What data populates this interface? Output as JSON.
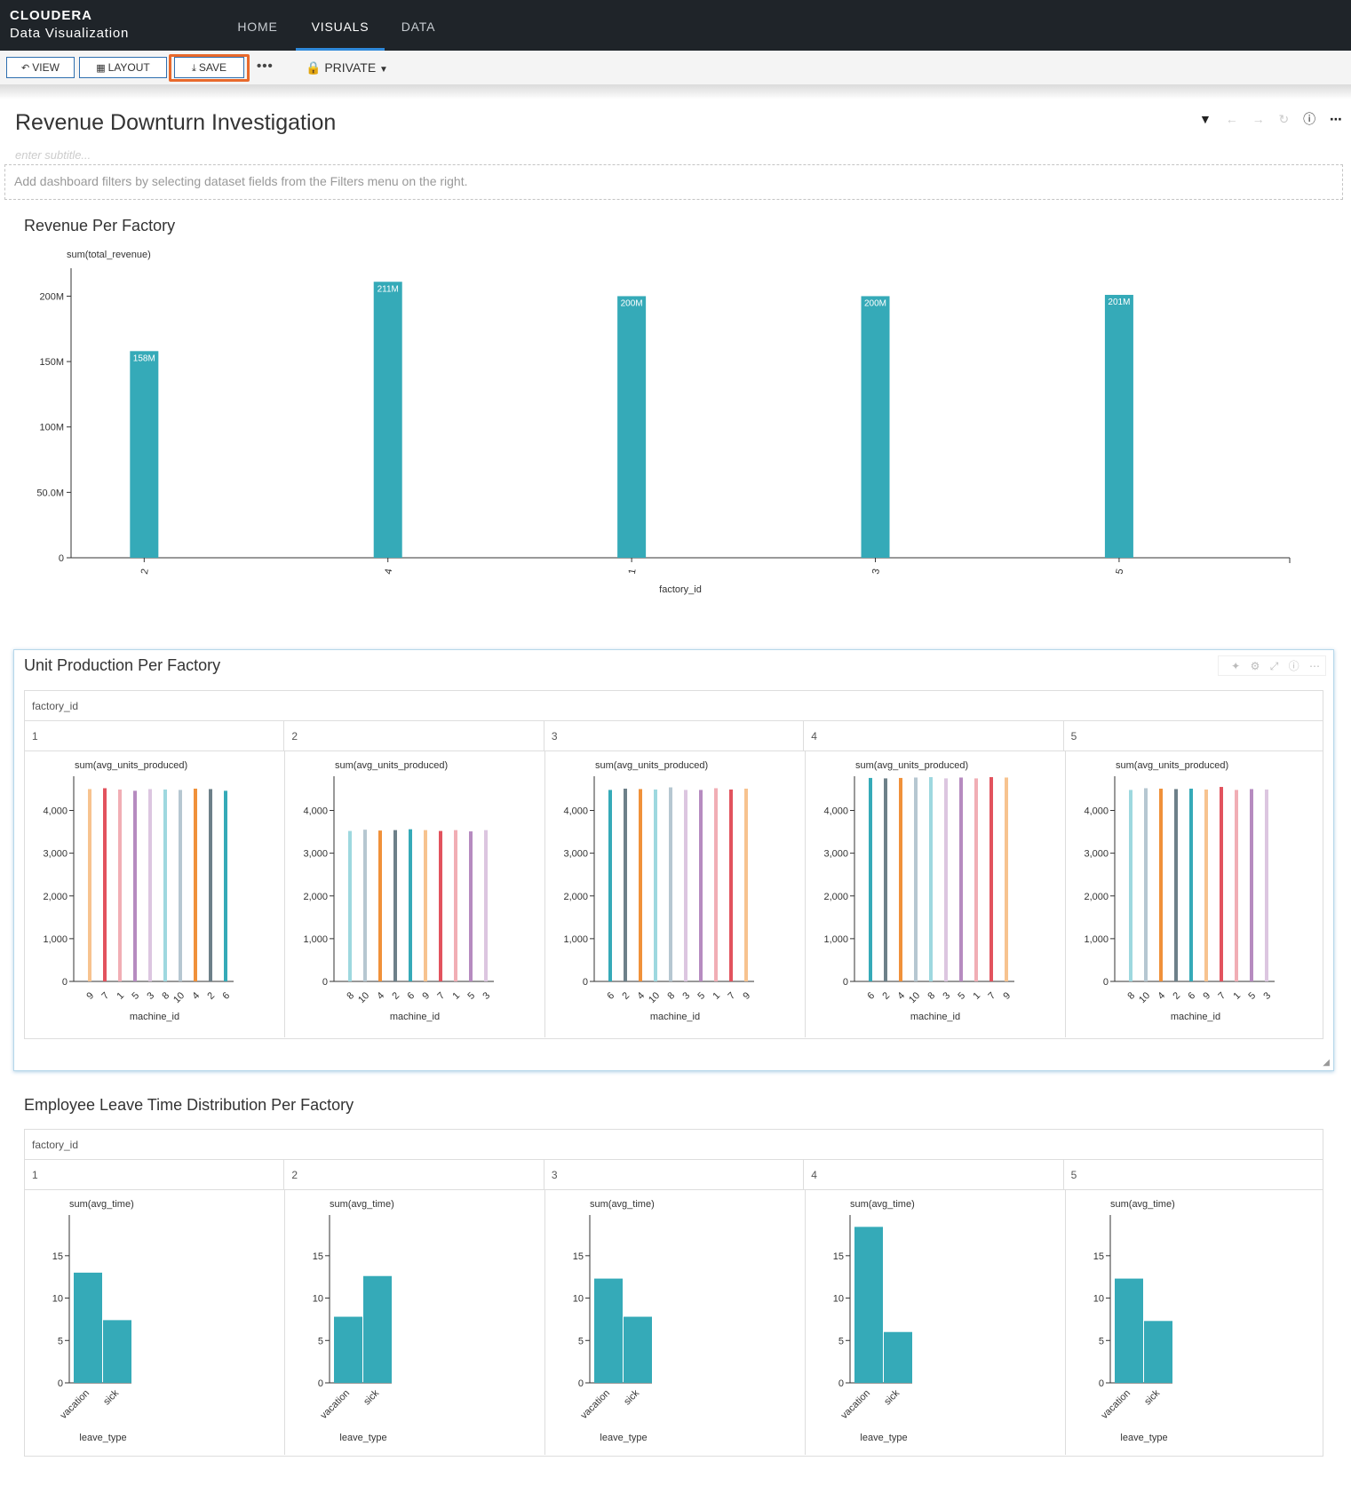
{
  "app": {
    "brand_name": "CLOUDERA",
    "brand_sub": "Data Visualization",
    "nav": [
      "HOME",
      "VISUALS",
      "DATA"
    ],
    "active_nav": "VISUALS"
  },
  "toolbar": {
    "view_label": "VIEW",
    "layout_label": "LAYOUT",
    "save_label": "SAVE",
    "more_label": "•••",
    "private_label": "PRIVATE"
  },
  "dashboard": {
    "title": "Revenue Downturn Investigation",
    "subtitle_placeholder": "enter subtitle...",
    "filter_hint": "Add dashboard filters by selecting dataset fields from the Filters menu on the right."
  },
  "colors": {
    "bar": "#35aab8",
    "highlight": "#e8692c",
    "nav_bg": "#1f2429",
    "machine_palette": [
      "#f7c38f",
      "#e2535e",
      "#f1aeb5",
      "#b68bc0",
      "#dcc6e0",
      "#9ed8df",
      "#b6c7d1",
      "#f0913a",
      "#6d8089",
      "#35aab8"
    ]
  },
  "revenue_chart": {
    "section_title": "Revenue Per Factory",
    "chart_data": {
      "type": "bar",
      "title": "Revenue Per Factory",
      "xlabel": "factory_id",
      "ylabel": "sum(total_revenue)",
      "categories": [
        "2",
        "4",
        "1",
        "3",
        "5"
      ],
      "values": [
        158,
        211,
        200,
        200,
        201
      ],
      "value_labels": [
        "158M",
        "211M",
        "200M",
        "200M",
        "201M"
      ],
      "y_ticks": [
        "0",
        "50.0M",
        "100M",
        "150M",
        "200M"
      ],
      "ylim": [
        0,
        220
      ],
      "unit": "M"
    }
  },
  "units_chart": {
    "section_title": "Unit Production Per Factory",
    "trellis_field": "factory_id",
    "y_label": "sum(avg_units_produced)",
    "x_label": "machine_id",
    "y_ticks": [
      "0",
      "1,000",
      "2,000",
      "3,000",
      "4,000"
    ],
    "chart_data": [
      {
        "type": "bar",
        "panel": "1",
        "categories": [
          "9",
          "7",
          "1",
          "5",
          "3",
          "8",
          "10",
          "4",
          "2",
          "6"
        ],
        "values": [
          4500,
          4520,
          4490,
          4460,
          4500,
          4490,
          4480,
          4510,
          4500,
          4460
        ],
        "colors": [
          0,
          1,
          2,
          3,
          4,
          5,
          6,
          7,
          8,
          9
        ]
      },
      {
        "type": "bar",
        "panel": "2",
        "categories": [
          "8",
          "10",
          "4",
          "2",
          "6",
          "9",
          "7",
          "1",
          "5",
          "3"
        ],
        "values": [
          3520,
          3550,
          3530,
          3540,
          3560,
          3540,
          3520,
          3540,
          3510,
          3540
        ],
        "colors": [
          5,
          6,
          7,
          8,
          9,
          0,
          1,
          2,
          3,
          4
        ]
      },
      {
        "type": "bar",
        "panel": "3",
        "categories": [
          "6",
          "2",
          "4",
          "10",
          "8",
          "3",
          "5",
          "1",
          "7",
          "9"
        ],
        "values": [
          4480,
          4510,
          4500,
          4490,
          4540,
          4480,
          4480,
          4520,
          4490,
          4510
        ],
        "colors": [
          9,
          8,
          7,
          5,
          6,
          4,
          3,
          2,
          1,
          0
        ]
      },
      {
        "type": "bar",
        "panel": "4",
        "categories": [
          "6",
          "2",
          "4",
          "10",
          "8",
          "3",
          "5",
          "1",
          "7",
          "9"
        ],
        "values": [
          4760,
          4750,
          4760,
          4770,
          4780,
          4750,
          4770,
          4750,
          4780,
          4770
        ],
        "colors": [
          9,
          8,
          7,
          6,
          5,
          4,
          3,
          2,
          1,
          0
        ]
      },
      {
        "type": "bar",
        "panel": "5",
        "categories": [
          "8",
          "10",
          "4",
          "2",
          "6",
          "9",
          "7",
          "1",
          "5",
          "3"
        ],
        "values": [
          4480,
          4520,
          4510,
          4500,
          4510,
          4490,
          4550,
          4480,
          4500,
          4490
        ],
        "colors": [
          5,
          6,
          7,
          8,
          9,
          0,
          1,
          2,
          3,
          4
        ]
      }
    ]
  },
  "leave_chart": {
    "section_title": "Employee Leave Time Distribution Per Factory",
    "trellis_field": "factory_id",
    "y_label": "sum(avg_time)",
    "x_label": "leave_type",
    "y_ticks": [
      "0",
      "5",
      "10",
      "15"
    ],
    "chart_data": [
      {
        "type": "bar",
        "panel": "1",
        "categories": [
          "vacation",
          "sick"
        ],
        "values": [
          13.0,
          7.4
        ]
      },
      {
        "type": "bar",
        "panel": "2",
        "categories": [
          "vacation",
          "sick"
        ],
        "values": [
          7.8,
          12.6
        ]
      },
      {
        "type": "bar",
        "panel": "3",
        "categories": [
          "vacation",
          "sick"
        ],
        "values": [
          12.3,
          7.8
        ]
      },
      {
        "type": "bar",
        "panel": "4",
        "categories": [
          "vacation",
          "sick"
        ],
        "values": [
          18.4,
          6.0
        ]
      },
      {
        "type": "bar",
        "panel": "5",
        "categories": [
          "vacation",
          "sick"
        ],
        "values": [
          12.3,
          7.3
        ]
      }
    ]
  }
}
